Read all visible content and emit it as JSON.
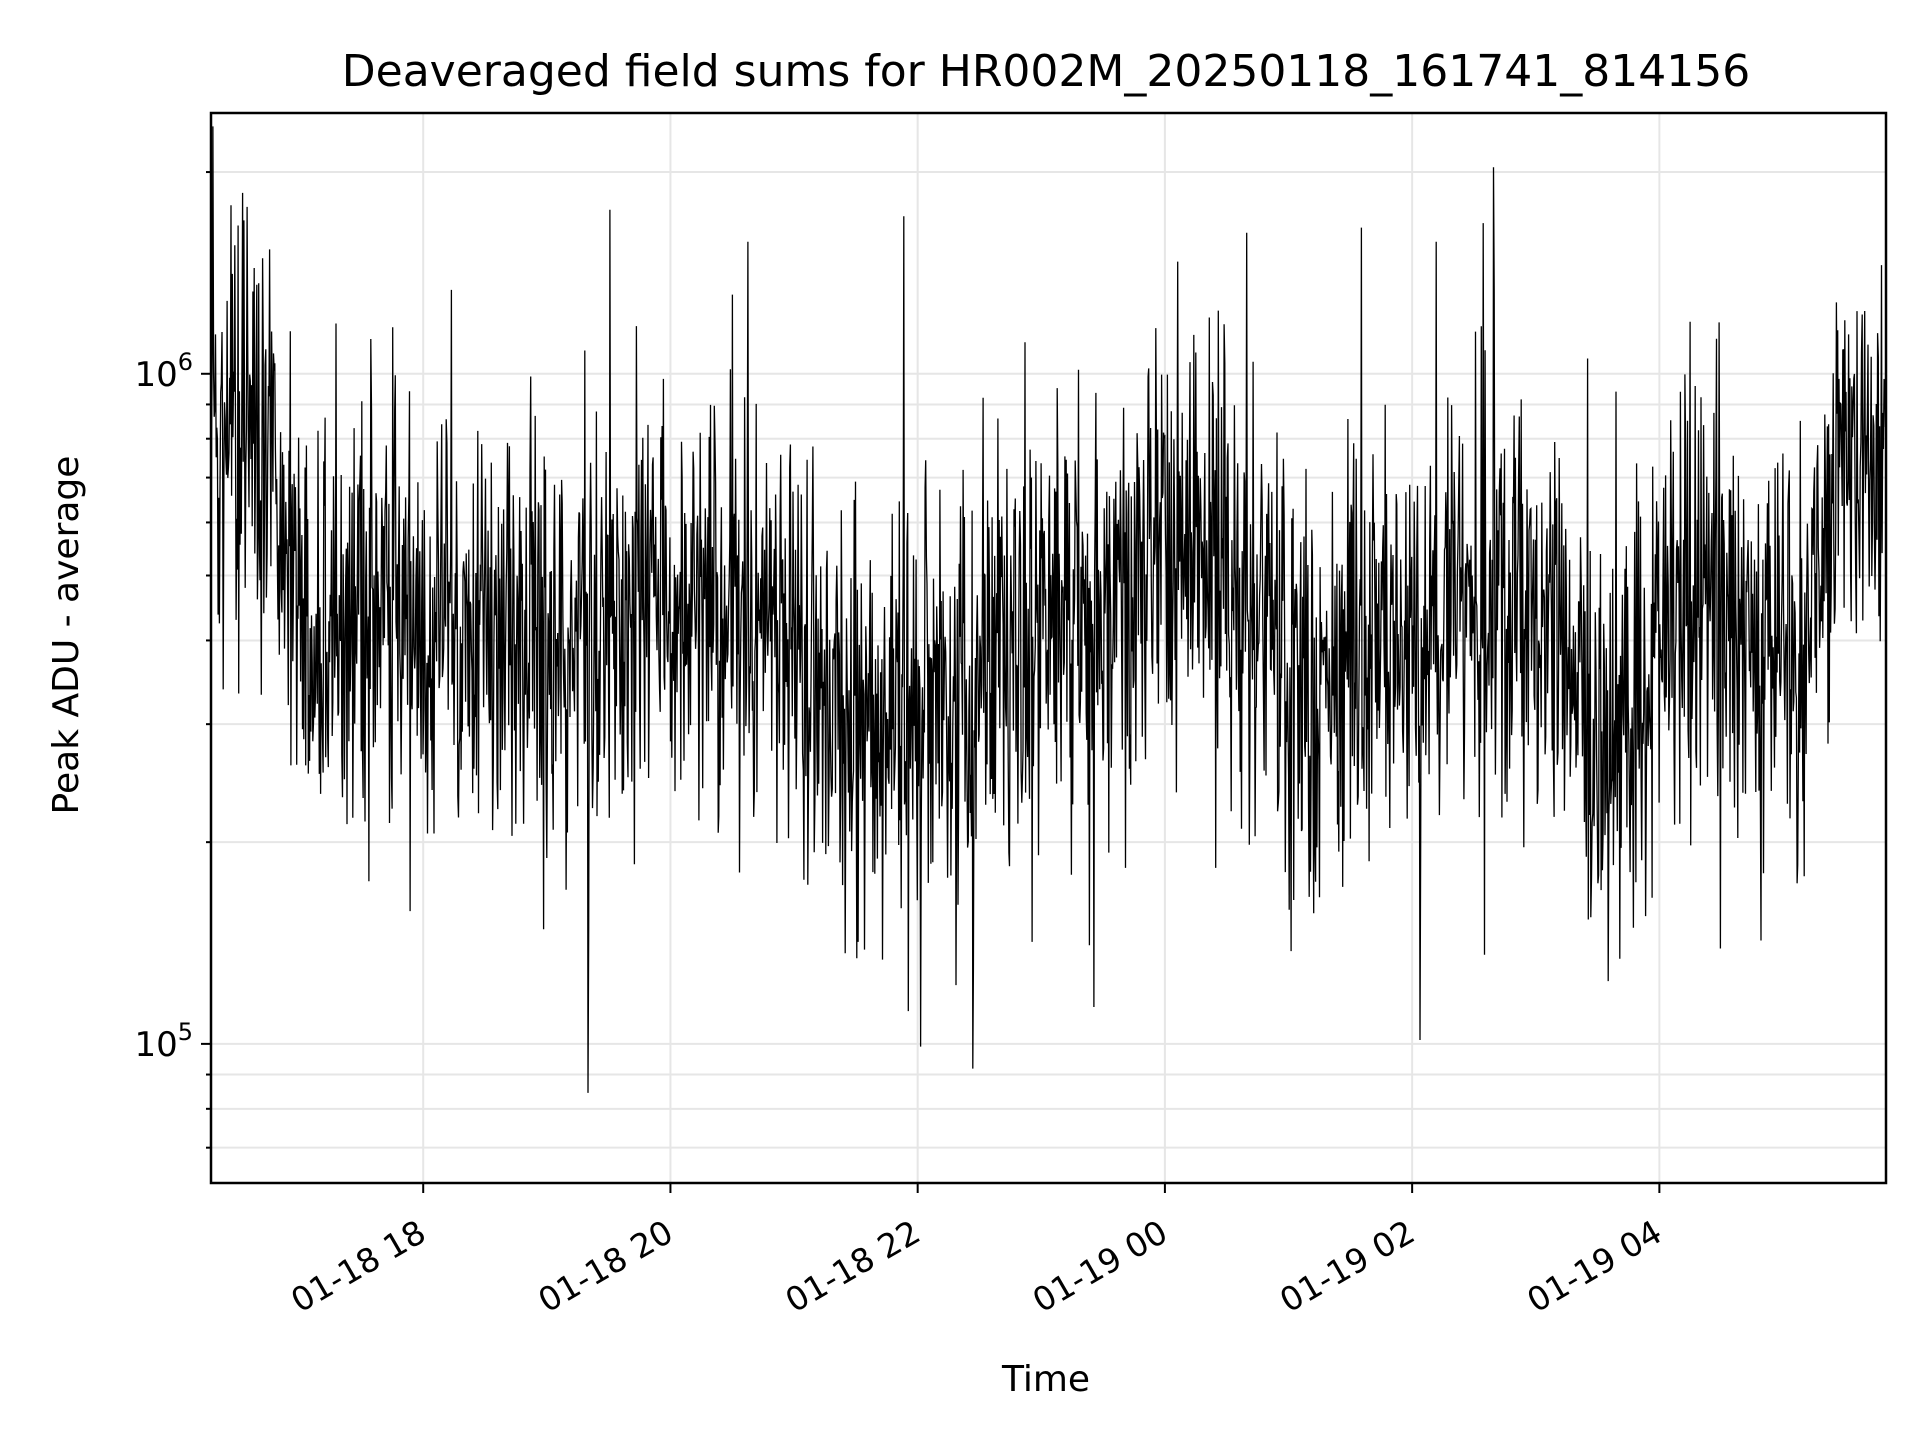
{
  "chart_data": {
    "type": "line",
    "title": "Deaveraged field sums for HR002M_20250118_161741_814156",
    "xlabel": "Time",
    "ylabel": "Peak ADU - average",
    "xlim": [
      "2025-01-18 16:17",
      "2025-01-19 05:50"
    ],
    "ylim": [
      62000,
      2450000
    ],
    "yscale": "log",
    "grid": true,
    "x_ticks": [
      {
        "value": "2025-01-18 18:00",
        "label": "01-18 18"
      },
      {
        "value": "2025-01-18 20:00",
        "label": "01-18 20"
      },
      {
        "value": "2025-01-18 22:00",
        "label": "01-18 22"
      },
      {
        "value": "2025-01-19 00:00",
        "label": "01-19 00"
      },
      {
        "value": "2025-01-19 02:00",
        "label": "01-19 02"
      },
      {
        "value": "2025-01-19 04:00",
        "label": "01-19 04"
      }
    ],
    "y_ticks": [
      {
        "value": 100000,
        "base": "10",
        "exp": "5"
      },
      {
        "value": 1000000,
        "base": "10",
        "exp": "6"
      }
    ],
    "series": [
      {
        "color": "#000000",
        "x": [
          "2025-01-18 16:17",
          "2025-01-18 16:25",
          "2025-01-18 16:35",
          "2025-01-18 16:45",
          "2025-01-18 16:50",
          "2025-01-18 17:00",
          "2025-01-18 17:10",
          "2025-01-18 17:20",
          "2025-01-18 17:30",
          "2025-01-18 17:40",
          "2025-01-18 17:50",
          "2025-01-18 18:00",
          "2025-01-18 18:10",
          "2025-01-18 18:20",
          "2025-01-18 18:30",
          "2025-01-18 18:40",
          "2025-01-18 18:50",
          "2025-01-18 19:00",
          "2025-01-18 19:10",
          "2025-01-18 19:20",
          "2025-01-18 19:30",
          "2025-01-18 19:40",
          "2025-01-18 19:50",
          "2025-01-18 20:00",
          "2025-01-18 20:10",
          "2025-01-18 20:20",
          "2025-01-18 20:30",
          "2025-01-18 20:40",
          "2025-01-18 20:50",
          "2025-01-18 21:00",
          "2025-01-18 21:10",
          "2025-01-18 21:20",
          "2025-01-18 21:30",
          "2025-01-18 21:40",
          "2025-01-18 21:50",
          "2025-01-18 22:00",
          "2025-01-18 22:10",
          "2025-01-18 22:20",
          "2025-01-18 22:30",
          "2025-01-18 22:40",
          "2025-01-18 22:50",
          "2025-01-18 23:00",
          "2025-01-18 23:10",
          "2025-01-18 23:20",
          "2025-01-18 23:30",
          "2025-01-18 23:40",
          "2025-01-18 23:50",
          "2025-01-19 00:00",
          "2025-01-19 00:10",
          "2025-01-19 00:20",
          "2025-01-19 00:30",
          "2025-01-19 00:40",
          "2025-01-19 00:50",
          "2025-01-19 01:00",
          "2025-01-19 01:10",
          "2025-01-19 01:20",
          "2025-01-19 01:30",
          "2025-01-19 01:40",
          "2025-01-19 01:50",
          "2025-01-19 02:00",
          "2025-01-19 02:10",
          "2025-01-19 02:20",
          "2025-01-19 02:30",
          "2025-01-19 02:40",
          "2025-01-19 02:50",
          "2025-01-19 03:00",
          "2025-01-19 03:10",
          "2025-01-19 03:20",
          "2025-01-19 03:30",
          "2025-01-19 03:40",
          "2025-01-19 03:50",
          "2025-01-19 04:00",
          "2025-01-19 04:10",
          "2025-01-19 04:20",
          "2025-01-19 04:30",
          "2025-01-19 04:40",
          "2025-01-19 04:50",
          "2025-01-19 05:00",
          "2025-01-19 05:10",
          "2025-01-19 05:20",
          "2025-01-19 05:30",
          "2025-01-19 05:40",
          "2025-01-19 05:50"
        ],
        "y": [
          700000,
          850000,
          950000,
          800000,
          650000,
          450000,
          400000,
          420000,
          430000,
          400000,
          410000,
          420000,
          400000,
          410000,
          420000,
          400000,
          410000,
          400000,
          390000,
          420000,
          440000,
          440000,
          450000,
          460000,
          450000,
          440000,
          420000,
          420000,
          410000,
          380000,
          350000,
          320000,
          310000,
          300000,
          300000,
          290000,
          310000,
          330000,
          360000,
          380000,
          370000,
          380000,
          400000,
          420000,
          430000,
          480000,
          520000,
          560000,
          540000,
          520000,
          500000,
          490000,
          480000,
          380000,
          320000,
          340000,
          380000,
          390000,
          370000,
          380000,
          450000,
          500000,
          480000,
          460000,
          440000,
          430000,
          400000,
          380000,
          260000,
          240000,
          300000,
          380000,
          420000,
          450000,
          430000,
          400000,
          380000,
          400000,
          380000,
          620000,
          700000,
          740000,
          760000
        ]
      }
    ]
  }
}
